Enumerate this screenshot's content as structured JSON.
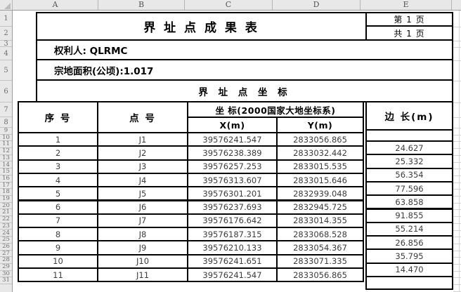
{
  "colors": {
    "table_border": "#000000",
    "header_strip_bg": "#e8e8e8",
    "data_text": "#3d3d3d"
  },
  "spreadsheet": {
    "column_headers": [
      "A",
      "B",
      "C",
      "D",
      "E"
    ],
    "row_numbers": [
      "1",
      "2",
      "3",
      "4",
      "5",
      "6",
      "7",
      "8",
      "9",
      "10",
      "11",
      "12",
      "13",
      "14",
      "15",
      "16",
      "17",
      "18",
      "19",
      "20",
      "21",
      "22",
      "23",
      "24",
      "25",
      "26",
      "27",
      "28",
      "29",
      "30",
      "31"
    ]
  },
  "page_header": {
    "page": "第 1 页",
    "total_pages": "共 1 页"
  },
  "doc": {
    "title": "界 址 点 成 果 表",
    "owner": "权利人: QLRMC",
    "area": "宗地面积(公顷):1.017",
    "section_title": "界 址 点 坐 标"
  },
  "table": {
    "headers": {
      "seq": "序 号",
      "point": "点 号",
      "coord_group": "坐 标(2000国家大地坐标系)",
      "x": "X(m)",
      "y": "Y(m)",
      "length": "边 长(m)"
    },
    "rows": [
      {
        "seq": "1",
        "point": "J1",
        "x": "39576241.547",
        "y": "2833056.865"
      },
      {
        "seq": "2",
        "point": "J2",
        "x": "39576238.389",
        "y": "2833032.442"
      },
      {
        "seq": "3",
        "point": "J3",
        "x": "39576257.253",
        "y": "2833015.535"
      },
      {
        "seq": "4",
        "point": "J4",
        "x": "39576313.607",
        "y": "2833015.646"
      },
      {
        "seq": "5",
        "point": "J5",
        "x": "39576301.201",
        "y": "2832939.048"
      },
      {
        "seq": "6",
        "point": "J6",
        "x": "39576237.693",
        "y": "2832945.725"
      },
      {
        "seq": "7",
        "point": "J7",
        "x": "39576176.642",
        "y": "2833014.355"
      },
      {
        "seq": "8",
        "point": "J8",
        "x": "39576187.315",
        "y": "2833068.528"
      },
      {
        "seq": "9",
        "point": "J9",
        "x": "39576210.133",
        "y": "2833054.367"
      },
      {
        "seq": "10",
        "point": "J10",
        "x": "39576241.651",
        "y": "2833071.335"
      },
      {
        "seq": "11",
        "point": "J11",
        "x": "39576241.547",
        "y": "2833056.865"
      }
    ],
    "lengths": [
      "24.627",
      "25.332",
      "56.354",
      "77.596",
      "63.858",
      "91.855",
      "55.214",
      "26.856",
      "35.795",
      "14.470"
    ]
  }
}
